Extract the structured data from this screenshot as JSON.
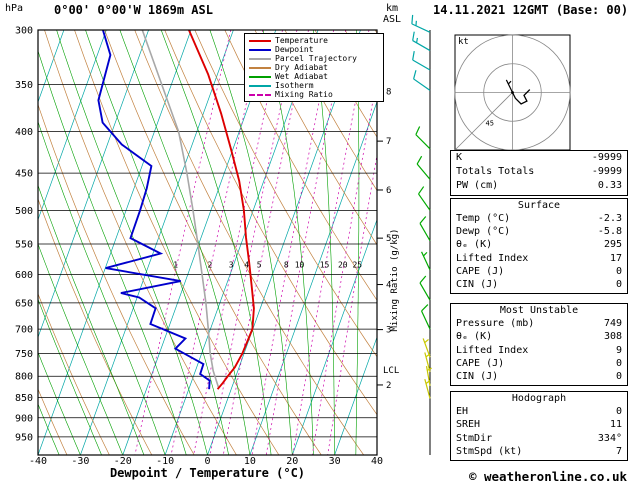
{
  "header": {
    "pressure_unit": "hPa",
    "station_title": "0°00' 0°00'W 1869m ASL",
    "altitude_unit_line1": "km",
    "altitude_unit_line2": "ASL",
    "date_title": "14.11.2021 12GMT (Base: 00)"
  },
  "colors": {
    "temperature": "#dd0000",
    "dewpoint": "#0000cc",
    "parcel": "#a8a8a8",
    "dry_adiabat": "#c28240",
    "wet_adiabat": "#00a000",
    "isotherm": "#00a6a6",
    "mixing_ratio": "#cc00aa",
    "grid": "#000000"
  },
  "legend": {
    "items": [
      {
        "label": "Temperature",
        "color": "#dd0000",
        "dash": false
      },
      {
        "label": "Dewpoint",
        "color": "#0000cc",
        "dash": false
      },
      {
        "label": "Parcel Trajectory",
        "color": "#a8a8a8",
        "dash": false
      },
      {
        "label": "Dry Adiabat",
        "color": "#c28240",
        "dash": false
      },
      {
        "label": "Wet Adiabat",
        "color": "#00a000",
        "dash": false
      },
      {
        "label": "Isotherm",
        "color": "#00a6a6",
        "dash": false
      },
      {
        "label": "Mixing Ratio",
        "color": "#cc00aa",
        "dash": true
      }
    ]
  },
  "chart_data": {
    "type": "skewt_log_p_sounding",
    "x_axis": {
      "label": "Dewpoint / Temperature (°C)",
      "min": -40,
      "max": 40,
      "ticks": [
        -40,
        -30,
        -20,
        -10,
        0,
        10,
        20,
        30,
        40
      ]
    },
    "y_axis": {
      "unit": "hPa",
      "scale": "log",
      "min": 300,
      "max": 1000,
      "ticks": [
        300,
        350,
        400,
        450,
        500,
        550,
        600,
        650,
        700,
        750,
        800,
        850,
        900,
        950
      ]
    },
    "altitude_ticks_km": [
      2,
      3,
      4,
      5,
      6,
      7,
      8
    ],
    "lcl_label": "LCL",
    "mixing_ratio_axis_label": "Mixing Ratio (g/kg)",
    "mixing_ratio_lines_g_kg": [
      1,
      2,
      3,
      4,
      5,
      8,
      10,
      15,
      20,
      25
    ],
    "isotherm_step_c": 10,
    "dry_adiabat_step_k": 10,
    "wet_adiabat_start_temps_c": [
      -40,
      -35,
      -30,
      -25,
      -20,
      -15,
      -10,
      -5,
      0,
      5,
      10,
      15,
      20,
      25,
      30,
      35
    ],
    "series": {
      "temperature_p_t": [
        [
          830,
          -3.2
        ],
        [
          815,
          -2.5
        ],
        [
          800,
          -1.9
        ],
        [
          780,
          -1.0
        ],
        [
          750,
          -0.4
        ],
        [
          700,
          -0.1
        ],
        [
          660,
          -1.5
        ],
        [
          620,
          -3.9
        ],
        [
          580,
          -6.5
        ],
        [
          540,
          -9.4
        ],
        [
          500,
          -12.2
        ],
        [
          460,
          -15.8
        ],
        [
          420,
          -20.5
        ],
        [
          380,
          -25.8
        ],
        [
          340,
          -32.2
        ],
        [
          300,
          -40.5
        ]
      ],
      "dewpoint_p_t": [
        [
          830,
          -5.2
        ],
        [
          810,
          -5.8
        ],
        [
          795,
          -8.6
        ],
        [
          773,
          -8.7
        ],
        [
          740,
          -16.6
        ],
        [
          719,
          -15.1
        ],
        [
          690,
          -24.6
        ],
        [
          660,
          -24.7
        ],
        [
          640,
          -29.5
        ],
        [
          632,
          -34.2
        ],
        [
          611,
          -21.1
        ],
        [
          589,
          -39.9
        ],
        [
          565,
          -28.2
        ],
        [
          541,
          -36.6
        ],
        [
          500,
          -36.7
        ],
        [
          470,
          -37.0
        ],
        [
          441,
          -37.8
        ],
        [
          415,
          -46.6
        ],
        [
          390,
          -53.0
        ],
        [
          366,
          -55.9
        ],
        [
          343,
          -56.4
        ],
        [
          322,
          -56.9
        ],
        [
          300,
          -60.8
        ]
      ],
      "parcel_p_t": [
        [
          828,
          -3.0
        ],
        [
          788,
          -5.8
        ],
        [
          750,
          -8.0
        ],
        [
          700,
          -10.5
        ],
        [
          650,
          -13.3
        ],
        [
          600,
          -16.6
        ],
        [
          550,
          -20.2
        ],
        [
          500,
          -24.2
        ],
        [
          450,
          -28.8
        ],
        [
          400,
          -34.3
        ],
        [
          350,
          -42.3
        ],
        [
          300,
          -51.5
        ]
      ]
    },
    "wind_barbs": [
      {
        "p": 302,
        "dir": 295,
        "spd": 15,
        "color": "#00a6a6"
      },
      {
        "p": 318,
        "dir": 300,
        "spd": 15,
        "color": "#00a6a6"
      },
      {
        "p": 336,
        "dir": 300,
        "spd": 10,
        "color": "#00a6a6"
      },
      {
        "p": 356,
        "dir": 305,
        "spd": 10,
        "color": "#00a6a6"
      },
      {
        "p": 420,
        "dir": 315,
        "spd": 10,
        "color": "#00aa00"
      },
      {
        "p": 458,
        "dir": 320,
        "spd": 10,
        "color": "#00aa00"
      },
      {
        "p": 500,
        "dir": 325,
        "spd": 10,
        "color": "#00aa00"
      },
      {
        "p": 545,
        "dir": 330,
        "spd": 10,
        "color": "#00aa00"
      },
      {
        "p": 592,
        "dir": 335,
        "spd": 5,
        "color": "#00aa00"
      },
      {
        "p": 645,
        "dir": 330,
        "spd": 10,
        "color": "#00aa00"
      },
      {
        "p": 700,
        "dir": 335,
        "spd": 10,
        "color": "#00aa00"
      },
      {
        "p": 758,
        "dir": 340,
        "spd": 5,
        "color": "#c8c800"
      },
      {
        "p": 790,
        "dir": 345,
        "spd": 5,
        "color": "#c8c800"
      },
      {
        "p": 822,
        "dir": 350,
        "spd": 5,
        "color": "#c8c800"
      },
      {
        "p": 852,
        "dir": 345,
        "spd": 5,
        "color": "#c8c800"
      }
    ]
  },
  "hodograph": {
    "unit_label": "kt",
    "ring_radii_kt": [
      10,
      20
    ],
    "radial_label": "45",
    "storm_dir_deg": 334,
    "storm_spd_kt": 7,
    "trace_kt": [
      [
        0,
        0
      ],
      [
        1,
        -2
      ],
      [
        3,
        -4
      ],
      [
        5,
        -3
      ],
      [
        4,
        -1
      ],
      [
        6,
        1
      ]
    ]
  },
  "panel": {
    "boxes": [
      {
        "title": null,
        "rows": [
          {
            "label": "K",
            "value": "-9999"
          },
          {
            "label": "Totals Totals",
            "value": "-9999"
          },
          {
            "label": "PW (cm)",
            "value": "0.33"
          }
        ]
      },
      {
        "title": "Surface",
        "rows": [
          {
            "label": "Temp (°C)",
            "value": "-2.3"
          },
          {
            "label": "Dewp (°C)",
            "value": "-5.8"
          },
          {
            "label": "θₑ (K)",
            "value": "295"
          },
          {
            "label": "Lifted Index",
            "value": "17"
          },
          {
            "label": "CAPE (J)",
            "value": "0"
          },
          {
            "label": "CIN (J)",
            "value": "0"
          }
        ]
      },
      {
        "title": "Most Unstable",
        "rows": [
          {
            "label": "Pressure (mb)",
            "value": "749"
          },
          {
            "label": "θₑ (K)",
            "value": "308"
          },
          {
            "label": "Lifted Index",
            "value": "9"
          },
          {
            "label": "CAPE (J)",
            "value": "0"
          },
          {
            "label": "CIN (J)",
            "value": "0"
          }
        ]
      },
      {
        "title": "Hodograph",
        "rows": [
          {
            "label": "EH",
            "value": "0"
          },
          {
            "label": "SREH",
            "value": "11"
          },
          {
            "label": "StmDir",
            "value": "334°"
          },
          {
            "label": "StmSpd (kt)",
            "value": "7"
          }
        ]
      }
    ]
  },
  "footer": {
    "copyright": "© weatheronline.co.uk"
  }
}
